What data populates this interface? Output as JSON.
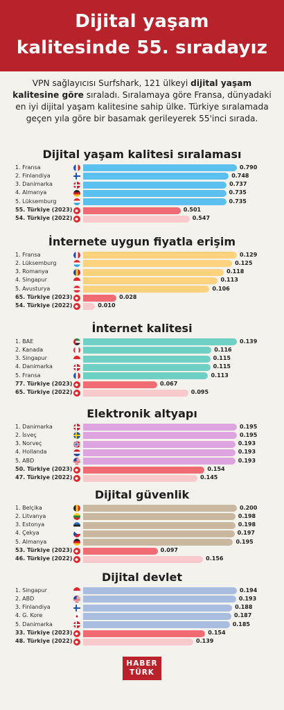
{
  "header": {
    "line1": "Dijital yaşam",
    "line2": "kalitesinde 55. sıradayız"
  },
  "intro": {
    "p1": "VPN sağlayıcısı Surfshark, 121 ülkeyi ",
    "b1": "dijital yaşam kalitesine göre",
    "p2": " sıraladı. Sıralamaya göre Fransa, dünyadaki  en iyi dijital yaşam kalitesine sahip ülke. Türkiye sıralamada geçen yıla göre bir basamak gerileyerek 55'inci sırada."
  },
  "colors": {
    "header_bg": "#b7222b",
    "turkiye_2023": "#f06b73",
    "turkiye_2022": "#f9c9cc"
  },
  "chart_data": [
    {
      "type": "bar",
      "title": "Dijital yaşam kalitesi sıralaması",
      "color": "#5cc0ef",
      "max": 0.79,
      "categories": [
        "1. Fransa",
        "2. Finlandiya",
        "3. Danimarka",
        "4. Almanya",
        "5. Lüksemburg",
        "55. Türkiye (2023)",
        "54. Türkiye (2022)"
      ],
      "flags": [
        "fr",
        "fi",
        "dk",
        "de",
        "lu",
        "tr",
        "tr"
      ],
      "values": [
        0.79,
        0.748,
        0.737,
        0.735,
        0.735,
        0.501,
        0.547
      ],
      "labels": [
        "0.790",
        "0.748",
        "0.737",
        "0.735",
        "0.735",
        "0.501",
        "0.547"
      ]
    },
    {
      "type": "bar",
      "title": "İnternete uygun fiyatla erişim",
      "color": "#fcd27f",
      "max": 0.129,
      "categories": [
        "1. Fransa",
        "2. Lüksemburg",
        "3. Romanya",
        "4. Singapur",
        "5. Avusturya",
        "65. Türkiye (2023)",
        "54. Türkiye (2022)"
      ],
      "flags": [
        "fr",
        "lu",
        "ro",
        "sg",
        "at",
        "tr",
        "tr"
      ],
      "values": [
        0.129,
        0.125,
        0.118,
        0.113,
        0.106,
        0.028,
        0.01
      ],
      "labels": [
        "0.129",
        "0.125",
        "0.118",
        "0.113",
        "0.106",
        "0.028",
        "0.010"
      ]
    },
    {
      "type": "bar",
      "title": "İnternet kalitesi",
      "color": "#6fd0c6",
      "max": 0.139,
      "categories": [
        "1. BAE",
        "2. Kanada",
        "3. Singapur",
        "4. Danimarka",
        "5. Fransa",
        "77. Türkiye (2023)",
        "65. Türkiye (2022)"
      ],
      "flags": [
        "ae",
        "ca",
        "sg",
        "dk",
        "fr",
        "tr",
        "tr"
      ],
      "values": [
        0.139,
        0.116,
        0.115,
        0.115,
        0.113,
        0.067,
        0.095
      ],
      "labels": [
        "0.139",
        "0.116",
        "0.115",
        "0.115",
        "0.113",
        "0.067",
        "0.095"
      ]
    },
    {
      "type": "bar",
      "title": "Elektronik altyapı",
      "color": "#dea4e0",
      "max": 0.195,
      "categories": [
        "1. Danimarka",
        "2. İsveç",
        "3. Norveç",
        "4. Hollanda",
        "5. ABD",
        "50. Türkiye (2023)",
        "47. Türkiye (2022)"
      ],
      "flags": [
        "dk",
        "se",
        "no",
        "nl",
        "us",
        "tr",
        "tr"
      ],
      "values": [
        0.195,
        0.195,
        0.193,
        0.193,
        0.193,
        0.154,
        0.145
      ],
      "labels": [
        "0.195",
        "0.195",
        "0.193",
        "0.193",
        "0.193",
        "0.154",
        "0.145"
      ]
    },
    {
      "type": "bar",
      "title": "Dijital güvenlik",
      "color": "#c9b79f",
      "max": 0.2,
      "categories": [
        "1. Belçika",
        "2. Litvanya",
        "3. Estonya",
        "4. Çekya",
        "5. Almanya",
        "53. Türkiye (2023)",
        "46. Türkiye (2022)"
      ],
      "flags": [
        "be",
        "lt",
        "ee",
        "cz",
        "de",
        "tr",
        "tr"
      ],
      "values": [
        0.2,
        0.198,
        0.198,
        0.197,
        0.195,
        0.097,
        0.156
      ],
      "labels": [
        "0.200",
        "0.198",
        "0.198",
        "0.197",
        "0.195",
        "0.097",
        "0.156"
      ]
    },
    {
      "type": "bar",
      "title": "Dijital devlet",
      "color": "#a9bde1",
      "max": 0.194,
      "categories": [
        "1. Singapur",
        "2. ABD",
        "3. Finlandiya",
        "4. G. Kore",
        "5. Danimarka",
        "33. Türkiye (2023)",
        "48. Türkiye (2022)"
      ],
      "flags": [
        "sg",
        "us",
        "fi",
        "kr",
        "dk",
        "tr",
        "tr"
      ],
      "values": [
        0.194,
        0.193,
        0.188,
        0.187,
        0.185,
        0.154,
        0.139
      ],
      "labels": [
        "0.194",
        "0.193",
        "0.188",
        "0.187",
        "0.185",
        "0.154",
        "0.139"
      ]
    }
  ],
  "logo": {
    "line1": "HABER",
    "line2": "TÜRK"
  }
}
